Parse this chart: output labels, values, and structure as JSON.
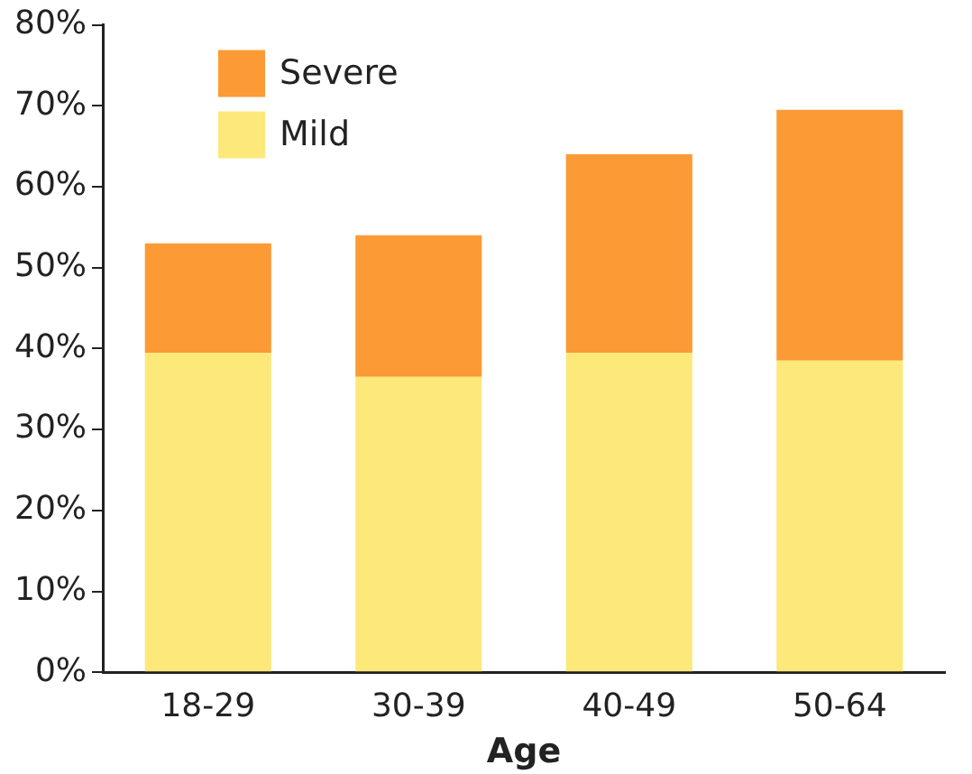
{
  "chart_data": {
    "type": "bar",
    "stacked": true,
    "categories": [
      "18-29",
      "30-39",
      "40-49",
      "50-64"
    ],
    "xlabel": "Age",
    "series": [
      {
        "name": "Mild",
        "color": "#fde87a",
        "values": [
          39.5,
          36.5,
          39.5,
          38.5
        ]
      },
      {
        "name": "Severe",
        "color": "#fc9a35",
        "values": [
          13.5,
          17.5,
          24.5,
          31
        ]
      }
    ],
    "ylim": [
      0,
      80
    ],
    "yticks": [
      {
        "value": 0,
        "label": "0%"
      },
      {
        "value": 10,
        "label": "10%"
      },
      {
        "value": 20,
        "label": "20%"
      },
      {
        "value": 30,
        "label": "30%"
      },
      {
        "value": 40,
        "label": "40%"
      },
      {
        "value": 50,
        "label": "50%"
      },
      {
        "value": 60,
        "label": "60%"
      },
      {
        "value": 70,
        "label": "70%"
      },
      {
        "value": 80,
        "label": "80%"
      }
    ],
    "grid": false,
    "legend": "top left"
  }
}
